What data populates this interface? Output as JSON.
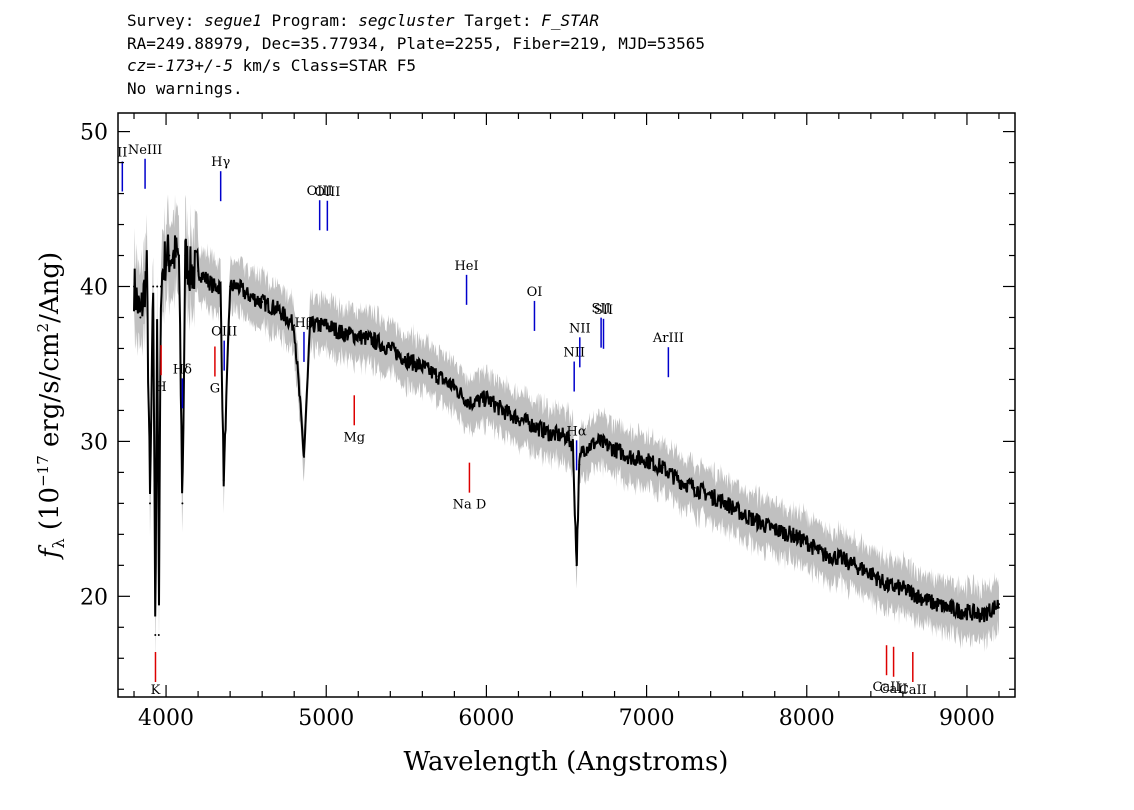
{
  "header": {
    "survey_label": "Survey:",
    "survey": "segue1",
    "program_label": "Program:",
    "program": "segcluster",
    "target_label": "Target:",
    "target": "F_STAR",
    "line2": "RA=249.88979, Dec=35.77934, Plate=2255, Fiber=219, MJD=53565",
    "cz": "cz=-173+/-5",
    "cz_rest": " km/s Class=STAR F5",
    "line4": "No warnings."
  },
  "chart_data": {
    "type": "line",
    "xlabel": "Wavelength (Angstroms)",
    "ylabel": "f_λ (10^-17 erg/s/cm^2/Ang)",
    "xlim": [
      3700,
      9300
    ],
    "ylim": [
      13.5,
      51.2
    ],
    "x_ticks": [
      4000,
      5000,
      6000,
      7000,
      8000,
      9000
    ],
    "y_ticks": [
      20,
      30,
      40,
      50
    ],
    "colors": {
      "flux": "#000000",
      "error": "#c0c0c0",
      "emission": "#0000cc",
      "absorption": "#dd0000"
    },
    "series": [
      {
        "x": [
          3800,
          3840,
          3880,
          3900,
          3920,
          3933,
          3945,
          3955,
          3968,
          3980,
          4000,
          4020,
          4060,
          4080,
          4102,
          4120,
          4150,
          4200,
          4250,
          4300,
          4340,
          4360,
          4400,
          4450,
          4500,
          4600,
          4700,
          4800,
          4861,
          4900,
          5000,
          5100,
          5200,
          5300,
          5400,
          5500,
          5600,
          5700,
          5800,
          5893,
          5950,
          6000,
          6100,
          6200,
          6300,
          6400,
          6500,
          6540,
          6563,
          6580,
          6600,
          6700,
          6800,
          6900,
          7000,
          7100,
          7200,
          7300,
          7400,
          7500,
          7600,
          7700,
          7800,
          7900,
          8000,
          8100,
          8200,
          8300,
          8400,
          8500,
          8600,
          8700,
          8800,
          8900,
          9000,
          9100,
          9200
        ],
        "y": [
          40,
          38,
          41,
          26,
          40,
          17.5,
          40,
          17.5,
          40,
          41,
          42,
          42,
          42,
          42,
          26,
          42,
          41,
          41,
          40.5,
          40,
          40,
          27.5,
          40,
          40,
          39.5,
          39,
          38.5,
          37.5,
          29,
          37.5,
          37.5,
          37,
          36.8,
          36.5,
          36,
          35.3,
          34.8,
          34.2,
          33.5,
          32.5,
          32.6,
          32.8,
          32,
          31.5,
          31,
          30.5,
          30.3,
          29.8,
          22,
          28.5,
          29.5,
          30,
          29.5,
          29,
          28.8,
          28.3,
          27.5,
          27,
          26.5,
          26,
          25.3,
          24.8,
          24.3,
          24,
          23.5,
          22.7,
          22.5,
          22,
          21.5,
          20.7,
          20.5,
          20,
          19.5,
          19.2,
          19,
          18.8,
          19.5
        ]
      }
    ],
    "emission_lines": [
      {
        "label": "II",
        "wavelength": 3727
      },
      {
        "label": "NeIII",
        "wavelength": 3869
      },
      {
        "label": "Hδ",
        "wavelength": 4102
      },
      {
        "label": "Hγ",
        "wavelength": 4341
      },
      {
        "label": "OIII",
        "wavelength": 4363
      },
      {
        "label": "Hβ",
        "wavelength": 4861
      },
      {
        "label": "OIII",
        "wavelength": 4959
      },
      {
        "label": "OIII",
        "wavelength": 5007
      },
      {
        "label": "HeI",
        "wavelength": 5876
      },
      {
        "label": "OI",
        "wavelength": 6300
      },
      {
        "label": "NII",
        "wavelength": 6548
      },
      {
        "label": "Hα",
        "wavelength": 6563
      },
      {
        "label": "NII",
        "wavelength": 6583
      },
      {
        "label": "SII",
        "wavelength": 6716
      },
      {
        "label": "SII",
        "wavelength": 6731
      },
      {
        "label": "ArIII",
        "wavelength": 7136
      }
    ],
    "absorption_lines": [
      {
        "label": "K",
        "wavelength": 3934
      },
      {
        "label": "H",
        "wavelength": 3969
      },
      {
        "label": "G",
        "wavelength": 4305
      },
      {
        "label": "Mg",
        "wavelength": 5175
      },
      {
        "label": "Na D",
        "wavelength": 5894
      },
      {
        "label": "CaII",
        "wavelength": 8498
      },
      {
        "label": "CaII",
        "wavelength": 8542
      },
      {
        "label": "CaII",
        "wavelength": 8662
      }
    ]
  }
}
